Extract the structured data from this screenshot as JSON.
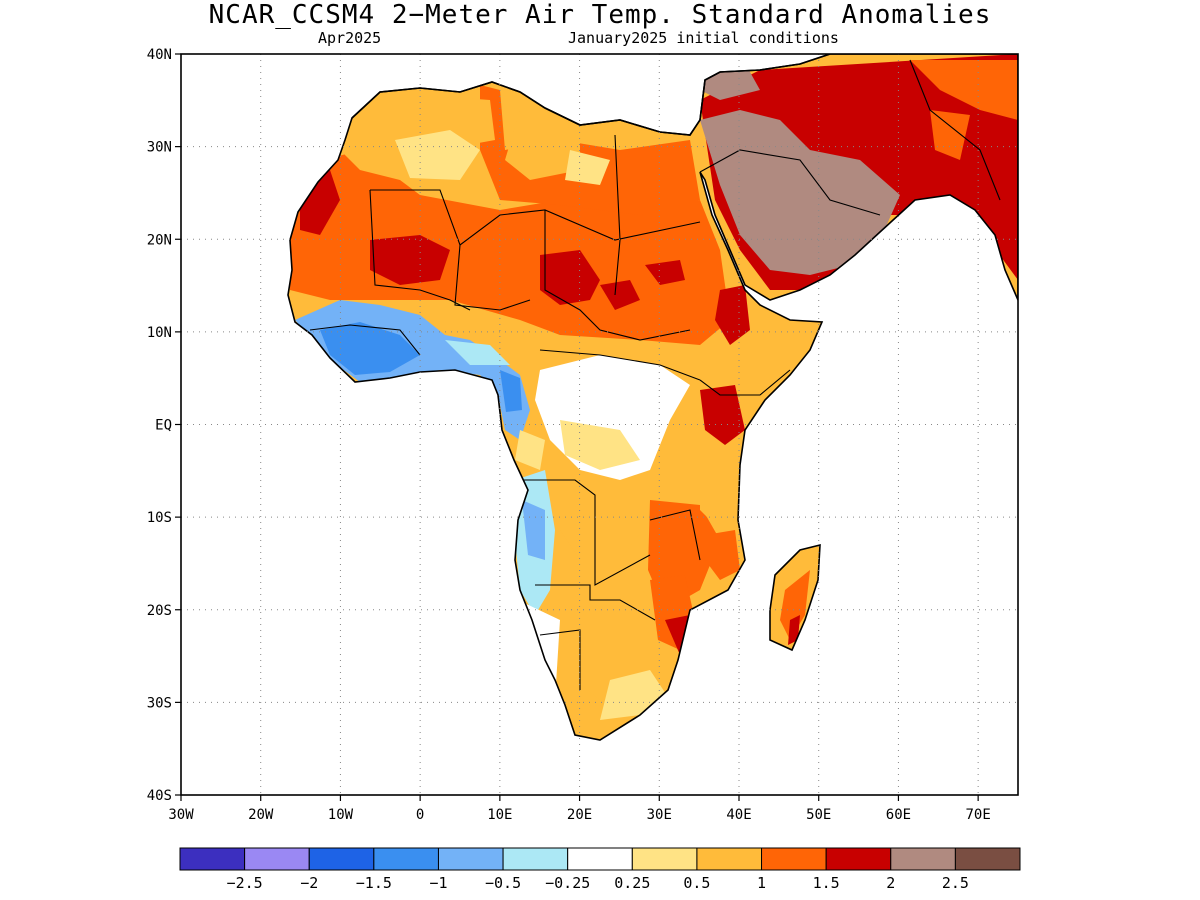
{
  "title": "NCAR_CCSM4 2−Meter Air Temp. Standard Anomalies",
  "valid_month": "Apr2025",
  "init_conditions": "January2025 initial conditions",
  "map": {
    "lon_range": [
      -30,
      75
    ],
    "lat_range": [
      -40,
      40
    ],
    "lat_ticks": [
      {
        "lat": 40,
        "label": "40N"
      },
      {
        "lat": 30,
        "label": "30N"
      },
      {
        "lat": 20,
        "label": "20N"
      },
      {
        "lat": 10,
        "label": "10N"
      },
      {
        "lat": 0,
        "label": "EQ"
      },
      {
        "lat": -10,
        "label": "10S"
      },
      {
        "lat": -20,
        "label": "20S"
      },
      {
        "lat": -30,
        "label": "30S"
      },
      {
        "lat": -40,
        "label": "40S"
      }
    ],
    "lon_ticks": [
      {
        "lon": -30,
        "label": "30W"
      },
      {
        "lon": -20,
        "label": "20W"
      },
      {
        "lon": -10,
        "label": "10W"
      },
      {
        "lon": 0,
        "label": "0"
      },
      {
        "lon": 10,
        "label": "10E"
      },
      {
        "lon": 20,
        "label": "20E"
      },
      {
        "lon": 30,
        "label": "30E"
      },
      {
        "lon": 40,
        "label": "40E"
      },
      {
        "lon": 50,
        "label": "50E"
      },
      {
        "lon": 60,
        "label": "60E"
      },
      {
        "lon": 70,
        "label": "70E"
      }
    ]
  },
  "colorbar": {
    "colors": [
      "#3c2fbf",
      "#9a88f3",
      "#1e63e6",
      "#3a8ff0",
      "#73b2f7",
      "#ace8f5",
      "#ffffff",
      "#ffe385",
      "#ffbb3a",
      "#ff6506",
      "#c80000",
      "#b08a80",
      "#7a4e42"
    ],
    "labels": [
      "−2.5",
      "−2",
      "−1.5",
      "−1",
      "−0.5",
      "−0.25",
      "0.25",
      "0.5",
      "1",
      "1.5",
      "2",
      "2.5"
    ]
  }
}
